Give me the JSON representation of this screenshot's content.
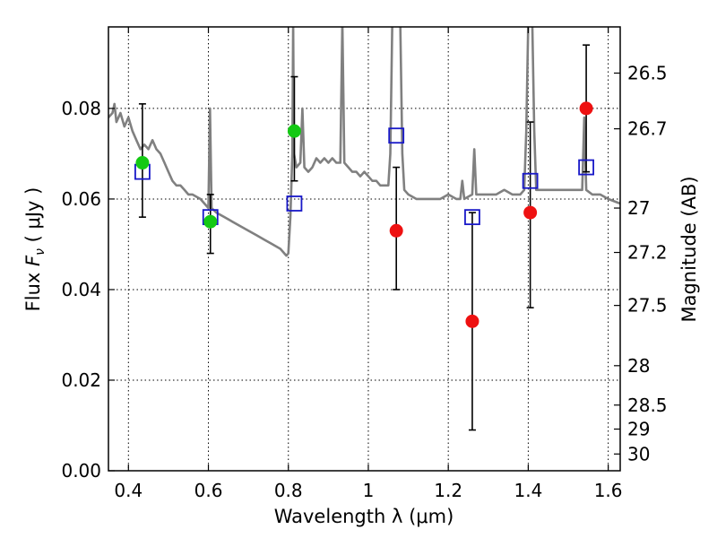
{
  "chart_data": {
    "type": "scatter",
    "title": "",
    "xlabel": "Wavelength  λ (μm)",
    "ylabel": "Flux  F_ν  ( μJy )",
    "ylabel_parts": {
      "prefix": "Flux  ",
      "symbol": "F",
      "subscript": "ν",
      "suffix": "  ( μJy )"
    },
    "right_ylabel": "Magnitude (AB)",
    "xlim": [
      0.35,
      1.63
    ],
    "ylim": [
      0.0,
      0.098
    ],
    "grid": true,
    "x_ticks": [
      {
        "value": 0.4,
        "label": "0.4"
      },
      {
        "value": 0.6,
        "label": "0.6"
      },
      {
        "value": 0.8,
        "label": "0.8"
      },
      {
        "value": 1.0,
        "label": "1"
      },
      {
        "value": 1.2,
        "label": "1.2"
      },
      {
        "value": 1.4,
        "label": "1.4"
      },
      {
        "value": 1.6,
        "label": "1.6"
      }
    ],
    "y_ticks": [
      {
        "value": 0.0,
        "label": "0.00"
      },
      {
        "value": 0.02,
        "label": "0.02"
      },
      {
        "value": 0.04,
        "label": "0.04"
      },
      {
        "value": 0.06,
        "label": "0.06"
      },
      {
        "value": 0.08,
        "label": "0.08"
      }
    ],
    "magnitude_ticks": [
      {
        "flux": 0.0878,
        "label": "26.5"
      },
      {
        "flux": 0.0755,
        "label": "26.7"
      },
      {
        "flux": 0.058,
        "label": "27"
      },
      {
        "flux": 0.0482,
        "label": "27.2"
      },
      {
        "flux": 0.0365,
        "label": "27.5"
      },
      {
        "flux": 0.0232,
        "label": "28"
      },
      {
        "flux": 0.0145,
        "label": "28.5"
      },
      {
        "flux": 0.0092,
        "label": "29"
      },
      {
        "flux": 0.0037,
        "label": "30"
      }
    ],
    "colors": {
      "sed": "#808080",
      "green_points": "#14c914",
      "red_points": "#ee1111",
      "model_boxes": "#1818c8",
      "error_bars": "#000000"
    },
    "sed_model": {
      "name": "SED model",
      "points": [
        [
          0.35,
          0.078
        ],
        [
          0.36,
          0.079
        ],
        [
          0.365,
          0.081
        ],
        [
          0.37,
          0.077
        ],
        [
          0.38,
          0.079
        ],
        [
          0.39,
          0.076
        ],
        [
          0.4,
          0.078
        ],
        [
          0.41,
          0.075
        ],
        [
          0.42,
          0.073
        ],
        [
          0.43,
          0.071
        ],
        [
          0.44,
          0.072
        ],
        [
          0.45,
          0.071
        ],
        [
          0.46,
          0.073
        ],
        [
          0.47,
          0.071
        ],
        [
          0.48,
          0.07
        ],
        [
          0.49,
          0.068
        ],
        [
          0.5,
          0.066
        ],
        [
          0.51,
          0.064
        ],
        [
          0.52,
          0.063
        ],
        [
          0.53,
          0.063
        ],
        [
          0.54,
          0.062
        ],
        [
          0.55,
          0.061
        ],
        [
          0.56,
          0.061
        ],
        [
          0.57,
          0.0605
        ],
        [
          0.58,
          0.06
        ],
        [
          0.59,
          0.059
        ],
        [
          0.6,
          0.058
        ],
        [
          0.604,
          0.08
        ],
        [
          0.608,
          0.058
        ],
        [
          0.62,
          0.057
        ],
        [
          0.64,
          0.056
        ],
        [
          0.66,
          0.055
        ],
        [
          0.68,
          0.054
        ],
        [
          0.7,
          0.053
        ],
        [
          0.72,
          0.052
        ],
        [
          0.74,
          0.051
        ],
        [
          0.76,
          0.05
        ],
        [
          0.78,
          0.049
        ],
        [
          0.79,
          0.048
        ],
        [
          0.795,
          0.0475
        ],
        [
          0.8,
          0.048
        ],
        [
          0.805,
          0.056
        ],
        [
          0.81,
          0.07
        ],
        [
          0.812,
          0.099
        ],
        [
          0.814,
          0.07
        ],
        [
          0.82,
          0.067
        ],
        [
          0.83,
          0.068
        ],
        [
          0.835,
          0.08
        ],
        [
          0.84,
          0.067
        ],
        [
          0.85,
          0.066
        ],
        [
          0.86,
          0.067
        ],
        [
          0.87,
          0.069
        ],
        [
          0.88,
          0.068
        ],
        [
          0.89,
          0.069
        ],
        [
          0.9,
          0.068
        ],
        [
          0.91,
          0.069
        ],
        [
          0.92,
          0.068
        ],
        [
          0.93,
          0.068
        ],
        [
          0.935,
          0.099
        ],
        [
          0.94,
          0.068
        ],
        [
          0.95,
          0.067
        ],
        [
          0.96,
          0.066
        ],
        [
          0.97,
          0.066
        ],
        [
          0.98,
          0.065
        ],
        [
          0.99,
          0.066
        ],
        [
          1.0,
          0.065
        ],
        [
          1.01,
          0.064
        ],
        [
          1.02,
          0.064
        ],
        [
          1.03,
          0.063
        ],
        [
          1.04,
          0.063
        ],
        [
          1.05,
          0.063
        ],
        [
          1.055,
          0.07
        ],
        [
          1.06,
          0.099
        ],
        [
          1.08,
          0.099
        ],
        [
          1.085,
          0.07
        ],
        [
          1.09,
          0.062
        ],
        [
          1.1,
          0.061
        ],
        [
          1.12,
          0.06
        ],
        [
          1.14,
          0.06
        ],
        [
          1.16,
          0.06
        ],
        [
          1.18,
          0.06
        ],
        [
          1.2,
          0.061
        ],
        [
          1.22,
          0.06
        ],
        [
          1.23,
          0.06
        ],
        [
          1.235,
          0.064
        ],
        [
          1.24,
          0.06
        ],
        [
          1.26,
          0.061
        ],
        [
          1.265,
          0.071
        ],
        [
          1.27,
          0.061
        ],
        [
          1.28,
          0.061
        ],
        [
          1.3,
          0.061
        ],
        [
          1.32,
          0.061
        ],
        [
          1.34,
          0.062
        ],
        [
          1.36,
          0.061
        ],
        [
          1.38,
          0.061
        ],
        [
          1.39,
          0.062
        ],
        [
          1.395,
          0.075
        ],
        [
          1.4,
          0.099
        ],
        [
          1.41,
          0.099
        ],
        [
          1.415,
          0.075
        ],
        [
          1.42,
          0.062
        ],
        [
          1.44,
          0.062
        ],
        [
          1.46,
          0.062
        ],
        [
          1.48,
          0.062
        ],
        [
          1.5,
          0.062
        ],
        [
          1.52,
          0.062
        ],
        [
          1.535,
          0.062
        ],
        [
          1.54,
          0.078
        ],
        [
          1.545,
          0.062
        ],
        [
          1.56,
          0.061
        ],
        [
          1.58,
          0.061
        ],
        [
          1.6,
          0.06
        ],
        [
          1.63,
          0.059
        ]
      ]
    },
    "series": [
      {
        "name": "green",
        "marker": "circle",
        "points": [
          {
            "x": 0.435,
            "y": 0.068,
            "yerr_low": 0.056,
            "yerr_high": 0.081
          },
          {
            "x": 0.605,
            "y": 0.055,
            "yerr_low": 0.048,
            "yerr_high": 0.061
          },
          {
            "x": 0.815,
            "y": 0.075,
            "yerr_low": 0.064,
            "yerr_high": 0.087
          }
        ]
      },
      {
        "name": "red",
        "marker": "circle",
        "points": [
          {
            "x": 1.07,
            "y": 0.053,
            "yerr_low": 0.04,
            "yerr_high": 0.067
          },
          {
            "x": 1.26,
            "y": 0.033,
            "yerr_low": 0.009,
            "yerr_high": 0.057
          },
          {
            "x": 1.405,
            "y": 0.057,
            "yerr_low": 0.036,
            "yerr_high": 0.077
          },
          {
            "x": 1.545,
            "y": 0.08,
            "yerr_low": 0.066,
            "yerr_high": 0.094
          }
        ]
      },
      {
        "name": "model",
        "marker": "square",
        "points": [
          {
            "x": 0.435,
            "y": 0.066
          },
          {
            "x": 0.605,
            "y": 0.056
          },
          {
            "x": 0.815,
            "y": 0.059
          },
          {
            "x": 1.07,
            "y": 0.074
          },
          {
            "x": 1.26,
            "y": 0.056
          },
          {
            "x": 1.405,
            "y": 0.064
          },
          {
            "x": 1.545,
            "y": 0.067
          }
        ]
      }
    ]
  }
}
